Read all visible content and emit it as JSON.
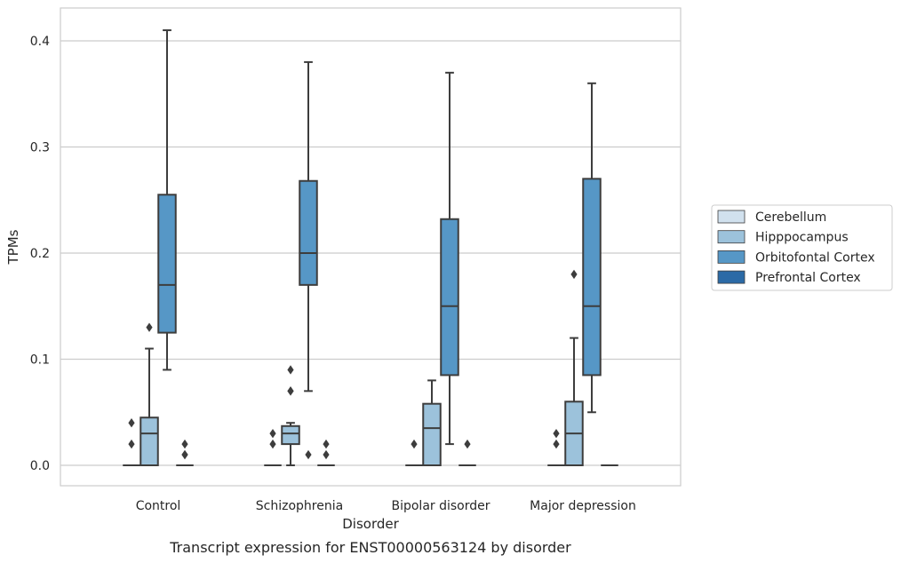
{
  "chart_data": {
    "type": "boxplot",
    "caption": "Transcript expression for ENST00000563124 by disorder",
    "xlabel": "Disorder",
    "ylabel": "TPMs",
    "ylim": [
      -0.02,
      0.43
    ],
    "yticks": [
      0.0,
      0.1,
      0.2,
      0.3,
      0.4
    ],
    "ytick_labels": [
      "0.0",
      "0.1",
      "0.2",
      "0.3",
      "0.4"
    ],
    "categories": [
      "Control",
      "Schizophrenia",
      "Bipolar disorder",
      "Major depression"
    ],
    "grid": "horizontal",
    "legend_position": "right",
    "series": [
      {
        "name": "Cerebellum",
        "color": "#d1e1ee",
        "boxes": [
          {
            "q1": 0,
            "median": 0,
            "q3": 0,
            "whislo": 0,
            "whishi": 0,
            "fliers": [
              0.02,
              0.04
            ]
          },
          {
            "q1": 0,
            "median": 0,
            "q3": 0,
            "whislo": 0,
            "whishi": 0,
            "fliers": [
              0.02,
              0.03
            ]
          },
          {
            "q1": 0,
            "median": 0,
            "q3": 0,
            "whislo": 0,
            "whishi": 0,
            "fliers": [
              0.02
            ]
          },
          {
            "q1": 0,
            "median": 0,
            "q3": 0,
            "whislo": 0,
            "whishi": 0,
            "fliers": [
              0.02,
              0.03
            ]
          }
        ]
      },
      {
        "name": "Hipppocampus",
        "color": "#9cc2db",
        "boxes": [
          {
            "q1": 0,
            "median": 0.03,
            "q3": 0.045,
            "whislo": 0,
            "whishi": 0.11,
            "fliers": [
              0.13
            ]
          },
          {
            "q1": 0.02,
            "median": 0.03,
            "q3": 0.037,
            "whislo": 0,
            "whishi": 0.04,
            "fliers": [
              0.07,
              0.07,
              0.09
            ]
          },
          {
            "q1": 0,
            "median": 0.035,
            "q3": 0.058,
            "whislo": 0,
            "whishi": 0.08,
            "fliers": []
          },
          {
            "q1": 0,
            "median": 0.03,
            "q3": 0.06,
            "whislo": 0,
            "whishi": 0.12,
            "fliers": [
              0.18
            ]
          }
        ]
      },
      {
        "name": "Orbitofontal Cortex",
        "color": "#5697c6",
        "boxes": [
          {
            "q1": 0.125,
            "median": 0.17,
            "q3": 0.255,
            "whislo": 0.09,
            "whishi": 0.41,
            "fliers": []
          },
          {
            "q1": 0.17,
            "median": 0.2,
            "q3": 0.268,
            "whislo": 0.07,
            "whishi": 0.38,
            "fliers": [
              0.01
            ]
          },
          {
            "q1": 0.085,
            "median": 0.15,
            "q3": 0.232,
            "whislo": 0.02,
            "whishi": 0.37,
            "fliers": []
          },
          {
            "q1": 0.085,
            "median": 0.15,
            "q3": 0.27,
            "whislo": 0.05,
            "whishi": 0.36,
            "fliers": []
          }
        ]
      },
      {
        "name": "Prefrontal Cortex",
        "color": "#2b6aa6",
        "boxes": [
          {
            "q1": 0,
            "median": 0,
            "q3": 0,
            "whislo": 0,
            "whishi": 0,
            "fliers": [
              0.01,
              0.01,
              0.02
            ]
          },
          {
            "q1": 0,
            "median": 0,
            "q3": 0,
            "whislo": 0,
            "whishi": 0,
            "fliers": [
              0.01,
              0.02
            ]
          },
          {
            "q1": 0,
            "median": 0,
            "q3": 0,
            "whislo": 0,
            "whishi": 0,
            "fliers": [
              0.02
            ]
          },
          {
            "q1": 0,
            "median": 0,
            "q3": 0,
            "whislo": 0,
            "whishi": 0,
            "fliers": []
          }
        ]
      }
    ]
  }
}
